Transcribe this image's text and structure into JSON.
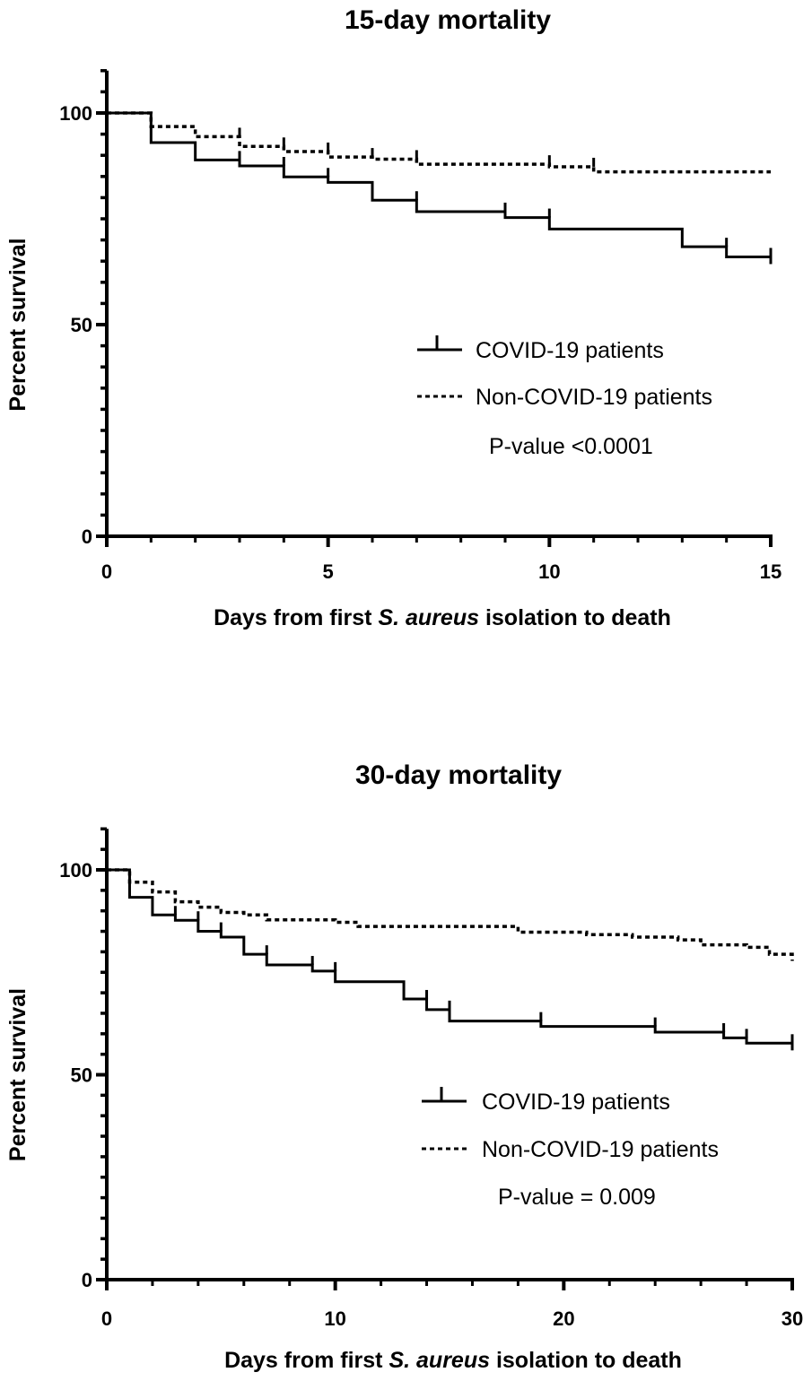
{
  "chart_data": [
    {
      "type": "line",
      "subtype": "kaplan-meier step",
      "title": "15-day mortality",
      "xlabel": "Days from first S. aureus isolation to death",
      "xlabel_parts": [
        "Days from first ",
        "S. aureus",
        " isolation to death"
      ],
      "ylabel": "Percent survival",
      "xlim": [
        0,
        15
      ],
      "ylim": [
        0,
        110
      ],
      "xticks": [
        0,
        5,
        10,
        15
      ],
      "yticks": [
        0,
        50,
        100
      ],
      "grid": false,
      "legend_position": "center-right",
      "annotation": "P-value <0.0001",
      "series": [
        {
          "name": "COVID-19 patients",
          "style": "solid",
          "color": "#000000",
          "x": [
            0,
            1,
            2,
            3,
            4,
            5,
            6,
            7,
            9,
            10,
            13,
            14,
            15
          ],
          "y": [
            100,
            93.0,
            88.9,
            87.5,
            84.9,
            83.6,
            79.4,
            76.7,
            75.3,
            72.6,
            68.4,
            66.0,
            66.0
          ],
          "censored_x": [
            3,
            4,
            5,
            7,
            9,
            10,
            14,
            15
          ]
        },
        {
          "name": "Non-COVID-19 patients",
          "style": "dotted",
          "color": "#000000",
          "x": [
            0,
            1,
            2,
            3,
            4,
            5,
            6,
            7,
            10,
            11,
            15
          ],
          "y": [
            100,
            96.8,
            94.4,
            92.1,
            90.9,
            89.6,
            89.1,
            87.9,
            87.3,
            86.1,
            86.1
          ],
          "censored_x": [
            3,
            4,
            5,
            6,
            7,
            10,
            11
          ]
        }
      ]
    },
    {
      "type": "line",
      "subtype": "kaplan-meier step",
      "title": "30-day mortality",
      "xlabel": "Days from first S. aureus isolation to death",
      "xlabel_parts": [
        "Days from first ",
        "S. aureus",
        " isolation to death"
      ],
      "ylabel": "Percent survival",
      "xlim": [
        0,
        30
      ],
      "ylim": [
        0,
        110
      ],
      "xticks": [
        0,
        10,
        20,
        30
      ],
      "yticks": [
        0,
        50,
        100
      ],
      "grid": false,
      "legend_position": "center-right",
      "annotation": "P-value = 0.009",
      "series": [
        {
          "name": "COVID-19 patients",
          "style": "solid",
          "color": "#000000",
          "x": [
            0,
            1,
            2,
            3,
            4,
            5,
            6,
            7,
            9,
            10,
            13,
            14,
            15,
            19,
            24,
            27,
            28,
            30
          ],
          "y": [
            100,
            93.3,
            89.0,
            87.7,
            85.0,
            83.6,
            79.4,
            76.8,
            75.3,
            72.7,
            68.5,
            65.9,
            63.1,
            61.8,
            60.4,
            59.0,
            57.7,
            57.7
          ],
          "censored_x": [
            3,
            4,
            5,
            7,
            9,
            10,
            14,
            15,
            19,
            24,
            27,
            28,
            30
          ]
        },
        {
          "name": "Non-COVID-19 patients",
          "style": "dotted",
          "color": "#000000",
          "x": [
            0,
            1,
            2,
            3,
            4,
            5,
            6,
            7,
            10,
            11,
            18,
            21,
            23,
            25,
            26,
            28,
            29,
            30
          ],
          "y": [
            100,
            97.0,
            94.6,
            92.2,
            90.9,
            89.6,
            89.0,
            87.8,
            87.2,
            86.2,
            84.8,
            84.2,
            83.6,
            82.9,
            81.7,
            81.1,
            79.4,
            77.8
          ],
          "censored_x": []
        }
      ]
    }
  ]
}
